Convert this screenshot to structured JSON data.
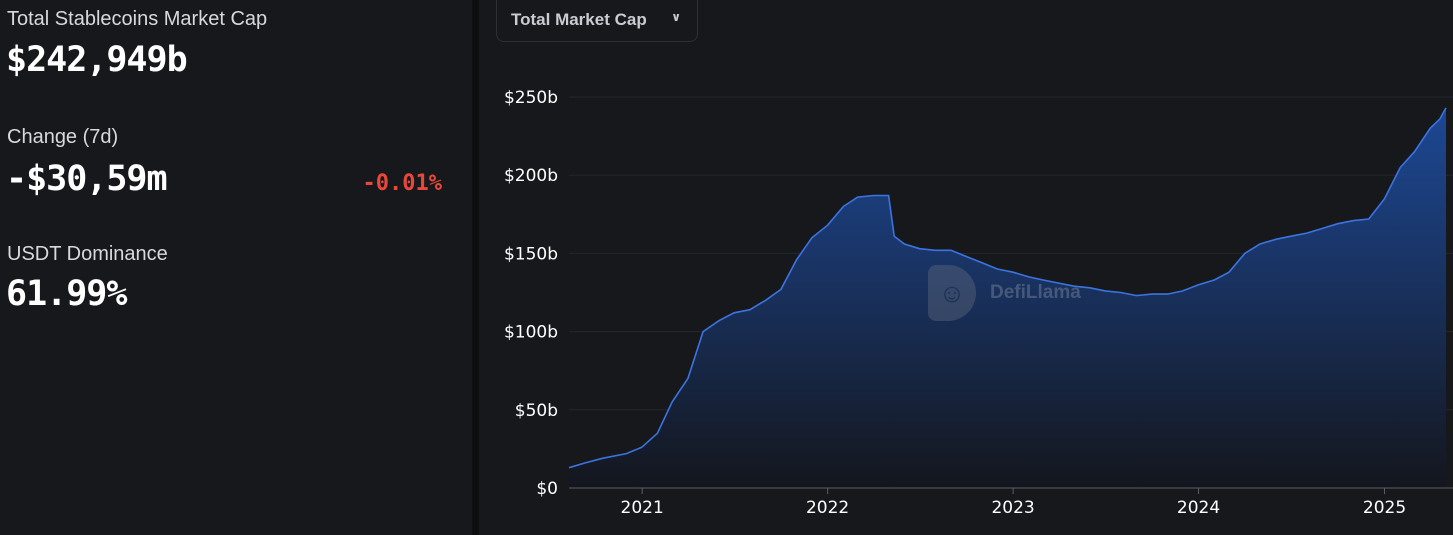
{
  "stats": {
    "market_cap_label": "Total Stablecoins Market Cap",
    "market_cap_value": "$242,949b",
    "change_label": "Change (7d)",
    "change_value": "-$30,59m",
    "change_pct": "-0.01%",
    "dominance_label": "USDT Dominance",
    "dominance_value": "61.99%"
  },
  "dropdown": {
    "label": "Total Market Cap",
    "icon": "chevron-down-icon"
  },
  "watermark": {
    "text": "DefiLlama",
    "icon": "llama-logo-icon"
  },
  "colors": {
    "background": "#17181b",
    "negative": "#e8473b",
    "line": "#3b74e0",
    "area_top": "#1d4a9a",
    "area_bottom": "#14161d"
  },
  "chart_data": {
    "type": "area",
    "title": "",
    "xlabel": "",
    "ylabel": "",
    "ylim": [
      0,
      250
    ],
    "xlim": [
      "2020-08-10",
      "2025-05-02"
    ],
    "y_unit": "billion USD",
    "yticks": [
      0,
      50,
      100,
      150,
      200,
      250
    ],
    "ytick_labels": [
      "$0",
      "$50b",
      "$100b",
      "$150b",
      "$200b",
      "$250b"
    ],
    "xticks": [
      "2021-01-01",
      "2022-01-01",
      "2023-01-01",
      "2024-01-01",
      "2025-01-01"
    ],
    "xtick_labels": [
      "2021",
      "2022",
      "2023",
      "2024",
      "2025"
    ],
    "grid": true,
    "series": [
      {
        "name": "",
        "x": [
          "2020-08-10",
          "2020-09-10",
          "2020-10-15",
          "2020-12-01",
          "2020-12-31",
          "2021-01-31",
          "2021-03-01",
          "2021-04-01",
          "2021-05-01",
          "2021-06-01",
          "2021-07-01",
          "2021-08-01",
          "2021-09-01",
          "2021-10-01",
          "2021-11-01",
          "2021-12-01",
          "2022-01-01",
          "2022-02-01",
          "2022-03-01",
          "2022-04-01",
          "2022-05-01",
          "2022-05-12",
          "2022-06-01",
          "2022-07-01",
          "2022-08-01",
          "2022-09-01",
          "2022-10-01",
          "2022-11-01",
          "2022-12-01",
          "2023-01-01",
          "2023-02-01",
          "2023-03-01",
          "2023-04-01",
          "2023-05-01",
          "2023-06-01",
          "2023-07-01",
          "2023-08-01",
          "2023-09-01",
          "2023-10-01",
          "2023-11-01",
          "2023-12-01",
          "2024-01-01",
          "2024-02-01",
          "2024-03-01",
          "2024-04-01",
          "2024-05-01",
          "2024-06-01",
          "2024-07-01",
          "2024-08-01",
          "2024-09-01",
          "2024-10-01",
          "2024-11-01",
          "2024-12-01",
          "2025-01-01",
          "2025-02-01",
          "2025-03-01",
          "2025-04-01",
          "2025-04-20",
          "2025-05-02"
        ],
        "values": [
          13,
          16,
          19,
          22,
          26,
          35,
          55,
          70,
          100,
          107,
          112,
          114,
          120,
          127,
          146,
          160,
          168,
          180,
          186,
          187,
          187,
          161,
          156,
          153,
          152,
          152,
          148,
          144,
          140,
          138,
          135,
          133,
          131,
          129,
          128,
          126,
          125,
          123,
          124,
          124,
          126,
          130,
          133,
          138,
          150,
          156,
          159,
          161,
          163,
          166,
          169,
          171,
          172,
          185,
          205,
          215,
          230,
          236,
          243
        ]
      }
    ]
  }
}
